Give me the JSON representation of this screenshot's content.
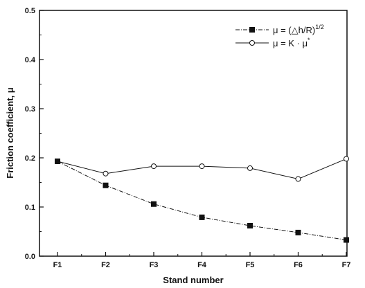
{
  "chart_data": {
    "type": "line",
    "categories": [
      "F1",
      "F2",
      "F3",
      "F4",
      "F5",
      "F6",
      "F7"
    ],
    "xlabel": "Stand number",
    "ylabel": "Friction coefficient, μ",
    "ylim": [
      0.0,
      0.5
    ],
    "yticks": [
      "0.0",
      "0.1",
      "0.2",
      "0.3",
      "0.4",
      "0.5"
    ],
    "grid": false,
    "legend_position": "top-right",
    "series": [
      {
        "name": "μ = (△h/R)^1/2",
        "legend_main": "μ = (△h/R)",
        "legend_sup": "1/2",
        "marker": "filled-square",
        "line_style": "dash-dot",
        "color": "#111111",
        "values": [
          0.193,
          0.144,
          0.106,
          0.079,
          0.062,
          0.048,
          0.033
        ]
      },
      {
        "name": "μ = K · μ*",
        "legend_main": "μ = K · μ",
        "legend_sup": "*",
        "marker": "open-circle",
        "line_style": "solid",
        "color": "#111111",
        "values": [
          0.193,
          0.168,
          0.183,
          0.183,
          0.179,
          0.157,
          0.198
        ]
      }
    ]
  }
}
